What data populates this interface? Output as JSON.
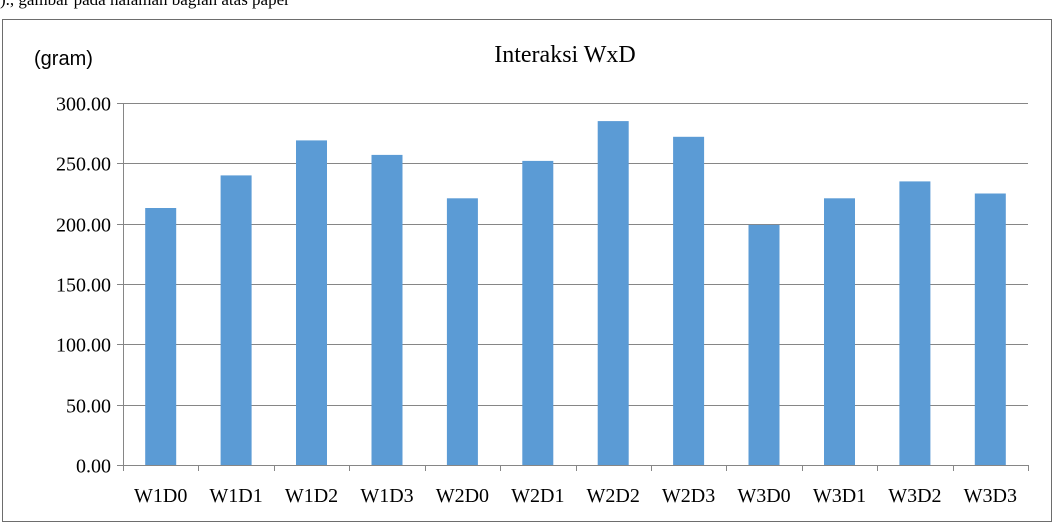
{
  "page": {
    "top_fragment": ")., gambar pada halaman bagian atas paper"
  },
  "chart_data": {
    "type": "bar",
    "title": "Interaksi WxD",
    "ylabel": "(gram)",
    "xlabel": "",
    "categories": [
      "W1D0",
      "W1D1",
      "W1D2",
      "W1D3",
      "W2D0",
      "W2D1",
      "W2D2",
      "W2D3",
      "W3D0",
      "W3D1",
      "W3D2",
      "W3D3"
    ],
    "values": [
      213,
      240,
      269,
      257,
      221,
      252,
      285,
      272,
      199,
      221,
      235,
      225
    ],
    "ylim": [
      0,
      300
    ],
    "yticks": [
      "0.00",
      "50.00",
      "100.00",
      "150.00",
      "200.00",
      "250.00",
      "300.00"
    ],
    "grid": true,
    "legend": "none",
    "colors": {
      "bar": "#5b9bd5",
      "grid": "#868686",
      "axis": "#868686",
      "frame": "#6d6d6d"
    }
  }
}
